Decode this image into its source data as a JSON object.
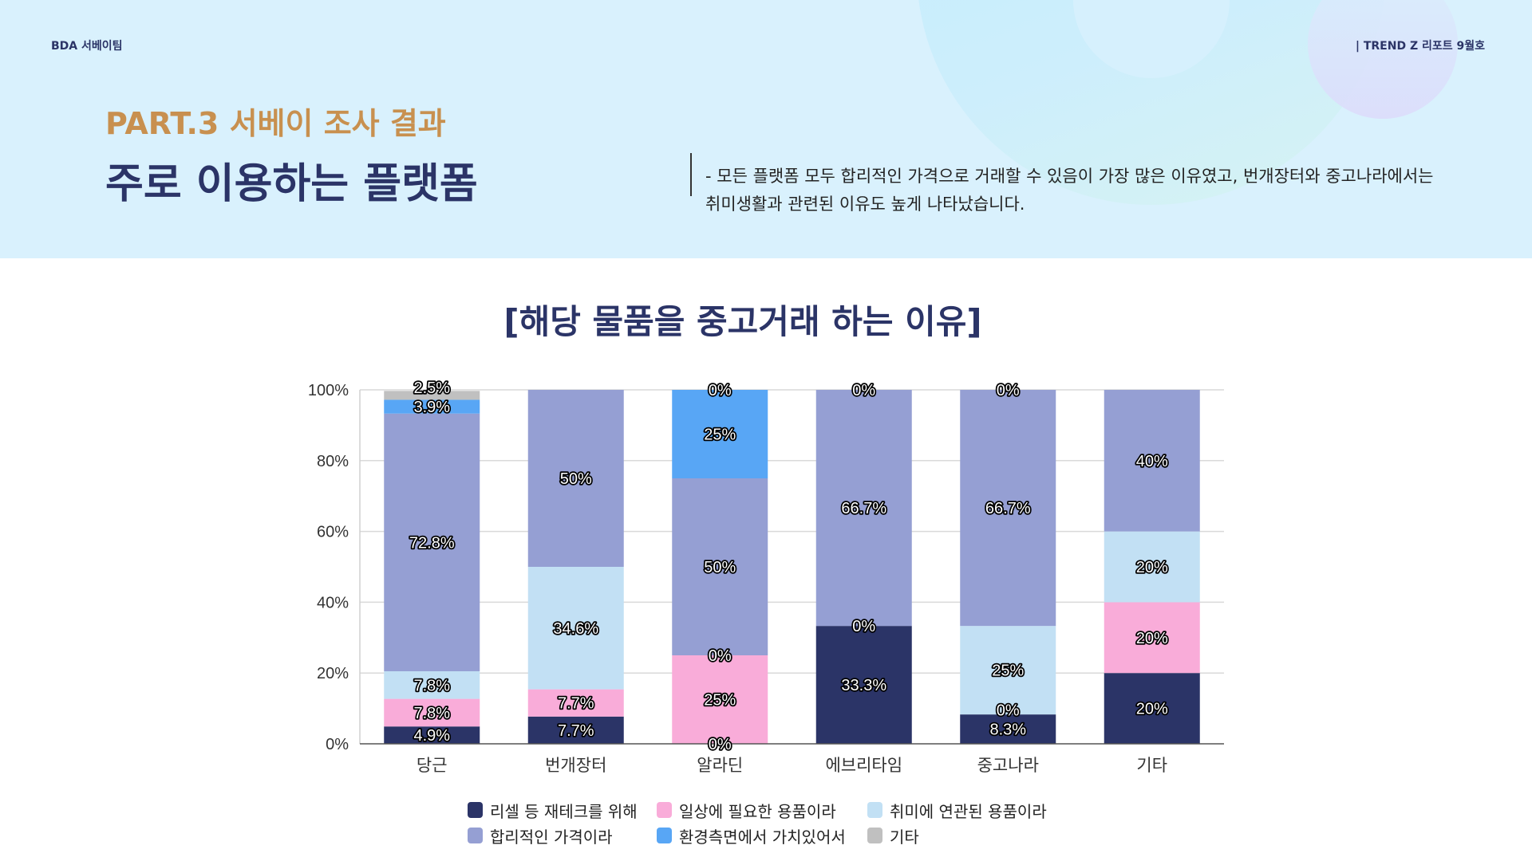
{
  "header": {
    "team": "BDA 서베이팀",
    "issue": "| TREND Z 리포트 9월호",
    "part": "PART.3 서베이 조사 결과",
    "title": "주로 이용하는 플랫폼",
    "description": [
      "- 모든 플랫폼 모두 합리적인 가격으로 거래할 수 있음이 가장 많은 이유였고, 번개장터와 중고나라에서는",
      "취미생활과 관련된 이유도 높게 나타났습니다."
    ]
  },
  "chart_data": {
    "type": "bar",
    "stacked": true,
    "percent": true,
    "title": "[해당 물품을 중고거래 하는 이유]",
    "categories": [
      "당근",
      "번개장터",
      "알라딘",
      "에브리타임",
      "중고나라",
      "기타"
    ],
    "ylim": [
      0,
      100
    ],
    "yticks": [
      "0%",
      "20%",
      "40%",
      "60%",
      "80%",
      "100%"
    ],
    "grid": true,
    "legend": "bottom",
    "series": [
      {
        "name": "리셀 등 재테크를 위해",
        "color": "#2b3467",
        "values": [
          4.9,
          7.7,
          0,
          33.3,
          8.3,
          20
        ]
      },
      {
        "name": "일상에 필요한 용품이라",
        "color": "#f9acd9",
        "values": [
          7.8,
          7.7,
          25,
          null,
          0,
          20
        ]
      },
      {
        "name": "취미에 연관된 용품이라",
        "color": "#c2e0f4",
        "values": [
          7.8,
          34.6,
          0,
          0,
          25,
          20
        ]
      },
      {
        "name": "합리적인 가격이라",
        "color": "#959fd3",
        "values": [
          72.8,
          50,
          50,
          66.7,
          66.7,
          40
        ]
      },
      {
        "name": "환경측면에서 가치있어서",
        "color": "#58a6f5",
        "values": [
          3.9,
          null,
          25,
          null,
          null,
          null
        ]
      },
      {
        "name": "기타",
        "color": "#c0c0c0",
        "values": [
          2.5,
          null,
          0,
          0,
          0,
          null
        ]
      }
    ]
  }
}
